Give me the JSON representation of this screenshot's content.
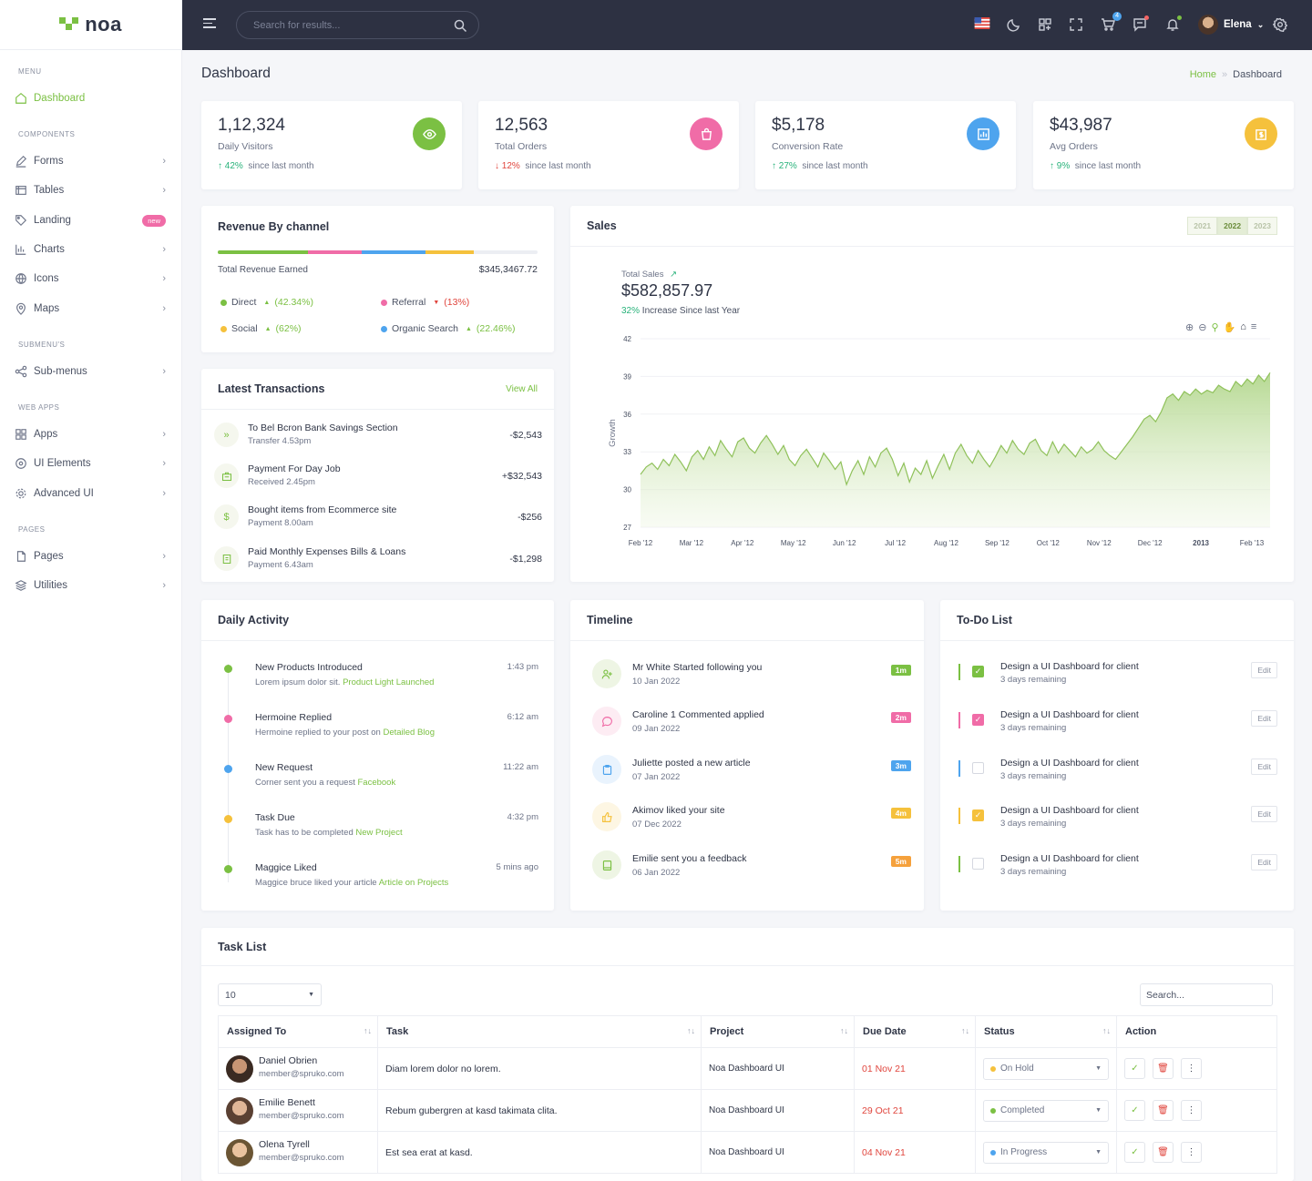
{
  "brand": {
    "name": "noa"
  },
  "sidebar": {
    "cats": [
      "MENU",
      "COMPONENTS",
      "SUBMENU'S",
      "WEB APPS",
      "PAGES"
    ],
    "items": [
      {
        "label": "Dashboard",
        "icon": "home-icon"
      },
      {
        "label": "Forms",
        "icon": "edit-icon"
      },
      {
        "label": "Tables",
        "icon": "table-icon"
      },
      {
        "label": "Landing",
        "icon": "tag-icon",
        "badge": "new"
      },
      {
        "label": "Charts",
        "icon": "chart-icon"
      },
      {
        "label": "Icons",
        "icon": "globe-icon"
      },
      {
        "label": "Maps",
        "icon": "map-pin-icon"
      },
      {
        "label": "Sub-menus",
        "icon": "share-icon"
      },
      {
        "label": "Apps",
        "icon": "grid-icon"
      },
      {
        "label": "UI Elements",
        "icon": "disc-icon"
      },
      {
        "label": "Advanced UI",
        "icon": "gear-icon"
      },
      {
        "label": "Pages",
        "icon": "file-icon"
      },
      {
        "label": "Utilities",
        "icon": "layers-icon"
      }
    ]
  },
  "topbar": {
    "search_placeholder": "Search for results...",
    "cart_count": "4",
    "user_name": "Elena"
  },
  "page": {
    "title": "Dashboard",
    "crumb_home": "Home",
    "crumb_current": "Dashboard"
  },
  "stats": [
    {
      "value": "1,12,324",
      "label": "Daily Visitors",
      "change": "42%",
      "dir": "up",
      "suffix": "since last month",
      "color": "#7bc043",
      "icon": "eye-icon"
    },
    {
      "value": "12,563",
      "label": "Total Orders",
      "change": "12%",
      "dir": "down",
      "suffix": "since last month",
      "color": "#f06ca7",
      "icon": "bag-icon"
    },
    {
      "value": "$5,178",
      "label": "Conversion Rate",
      "change": "27%",
      "dir": "up",
      "suffix": "since last month",
      "color": "#4ea4ee",
      "icon": "chart-icon"
    },
    {
      "value": "$43,987",
      "label": "Avg Orders",
      "change": "9%",
      "dir": "up",
      "suffix": "since last month",
      "color": "#f5c13c",
      "icon": "dollar-icon"
    }
  ],
  "revenue": {
    "title": "Revenue By channel",
    "total_label": "Total Revenue Earned",
    "total_value": "$345,3467.72",
    "channels": [
      {
        "name": "Direct",
        "pct": "(42.34%)",
        "dir": "up",
        "color": "#7bc043"
      },
      {
        "name": "Referral",
        "pct": "(13%)",
        "dir": "down",
        "color": "#f06ca7"
      },
      {
        "name": "Social",
        "pct": "(62%)",
        "dir": "up",
        "color": "#f5c13c"
      },
      {
        "name": "Organic Search",
        "pct": "(22.46%)",
        "dir": "up",
        "color": "#4ea4ee"
      }
    ]
  },
  "transactions": {
    "title": "Latest Transactions",
    "view_all": "View All",
    "rows": [
      {
        "title_pre": "To Bel Bcron Bank ",
        "title_bold": "Savings Section",
        "sub": "Transfer 4.53pm",
        "amount": "-$2,543",
        "icon": "arrows-icon"
      },
      {
        "title_pre": "Payment For ",
        "title_bold": "Day Job",
        "sub": "Received 2.45pm",
        "amount": "+$32,543",
        "icon": "briefcase-icon"
      },
      {
        "title_pre": "Bought items from ",
        "title_bold": "Ecommerce site",
        "sub": "Payment 8.00am",
        "amount": "-$256",
        "icon": "dollar-icon"
      },
      {
        "title_pre": "Paid Monthly Expenses ",
        "title_bold": "Bills & Loans",
        "sub": "Payment 6.43am",
        "amount": "-$1,298",
        "icon": "receipt-icon"
      }
    ]
  },
  "sales": {
    "title": "Sales",
    "years": [
      "2021",
      "2022",
      "2023"
    ],
    "active_year": "2022",
    "total_label": "Total Sales",
    "total_value": "$582,857.97",
    "increase_pct": "32%",
    "increase_text": "Increase Since last Year"
  },
  "chart_data": {
    "type": "area",
    "ylabel": "Growth",
    "ylim": [
      27,
      42
    ],
    "yticks": [
      "42",
      "39",
      "36",
      "33",
      "30",
      "27"
    ],
    "xticks": [
      "Feb '12",
      "Mar '12",
      "Apr '12",
      "May '12",
      "Jun '12",
      "Jul '12",
      "Aug '12",
      "Sep '12",
      "Oct '12",
      "Nov '12",
      "Dec '12",
      "2013",
      "Feb '13"
    ],
    "series": [
      {
        "values": [
          31.2,
          31.8,
          32.1,
          31.6,
          32.4,
          31.9,
          32.8,
          32.2,
          31.5,
          32.6,
          33.1,
          32.4,
          33.4,
          32.7,
          33.9,
          33.2,
          32.6,
          33.8,
          34.1,
          33.3,
          32.9,
          33.7,
          34.3,
          33.6,
          32.8,
          33.5,
          32.4,
          31.9,
          32.7,
          33.2,
          32.5,
          31.8,
          32.9,
          32.3,
          31.6,
          32.2,
          30.4,
          31.5,
          32.3,
          31.2,
          32.6,
          31.8,
          32.9,
          33.3,
          32.4,
          31.1,
          32.1,
          30.6,
          31.7,
          31.2,
          32.3,
          30.9,
          31.9,
          32.8,
          31.6,
          32.9,
          33.6,
          32.7,
          32.1,
          33.1,
          32.4,
          31.8,
          32.6,
          33.5,
          32.9,
          33.9,
          33.2,
          32.8,
          33.7,
          34.0,
          33.1,
          32.7,
          33.8,
          32.9,
          33.6,
          33.1,
          32.6,
          33.4,
          32.9,
          33.2,
          33.8,
          33.1,
          32.7,
          32.4,
          33.0,
          33.6,
          34.2,
          34.9,
          35.6,
          35.9,
          35.4,
          36.2,
          37.3,
          37.6,
          37.1,
          37.8,
          37.5,
          38.0,
          37.6,
          37.9,
          37.7,
          38.3,
          38.0,
          37.8,
          38.6,
          38.2,
          38.8,
          38.4,
          39.1,
          38.6,
          39.3
        ]
      }
    ]
  },
  "activity": {
    "title": "Daily Activity",
    "rows": [
      {
        "title": "New Products Introduced",
        "sub": "Lorem ipsum dolor sit. ",
        "link": "Product Light Launched",
        "time": "1:43 pm",
        "color": "#7bc043"
      },
      {
        "title": "Hermoine Replied",
        "sub": "Hermoine replied to your post on ",
        "link": "Detailed Blog",
        "time": "6:12 am",
        "color": "#f06ca7"
      },
      {
        "title": "New Request",
        "sub": "Corner sent you a request ",
        "link": "Facebook",
        "time": "11:22 am",
        "color": "#4ea4ee"
      },
      {
        "title": "Task Due",
        "sub": "Task has to be completed ",
        "link": "New Project",
        "time": "4:32 pm",
        "color": "#f5c13c"
      },
      {
        "title": "Maggice Liked",
        "sub": "Maggice bruce liked your article ",
        "link": "Article on Projects",
        "time": "5 mins ago",
        "color": "#7bc043"
      }
    ]
  },
  "timeline": {
    "title": "Timeline",
    "rows": [
      {
        "title": "Mr White Started following you",
        "date": "10 Jan 2022",
        "badge": "1m",
        "color": "#7bc043",
        "bg": "#eef5e4",
        "icon": "user-plus-icon"
      },
      {
        "title": "Caroline 1 Commented applied",
        "date": "09 Jan 2022",
        "badge": "2m",
        "color": "#f06ca7",
        "bg": "#fdecf3",
        "icon": "comment-icon"
      },
      {
        "title": "Juliette posted a new article",
        "date": "07 Jan 2022",
        "badge": "3m",
        "color": "#4ea4ee",
        "bg": "#e9f3fd",
        "icon": "clipboard-icon"
      },
      {
        "title": "Akimov liked your site",
        "date": "07 Dec 2022",
        "badge": "4m",
        "color": "#f5c13c",
        "bg": "#fdf6e3",
        "icon": "thumbs-up-icon"
      },
      {
        "title": "Emilie sent you a feedback",
        "date": "06 Jan 2022",
        "badge": "5m",
        "color": "#f5a13c",
        "bg": "#eef5e4",
        "icon": "book-icon"
      }
    ]
  },
  "todo": {
    "title": "To-Do List",
    "edit_label": "Edit",
    "rows": [
      {
        "title": "Design a UI Dashboard for client",
        "sub": "3 days remaining",
        "color": "#7bc043",
        "checked": true
      },
      {
        "title": "Design a UI Dashboard for client",
        "sub": "3 days remaining",
        "color": "#f06ca7",
        "checked": true
      },
      {
        "title": "Design a UI Dashboard for client",
        "sub": "3 days remaining",
        "color": "#4ea4ee",
        "checked": false
      },
      {
        "title": "Design a UI Dashboard for client",
        "sub": "3 days remaining",
        "color": "#f5c13c",
        "checked": true
      },
      {
        "title": "Design a UI Dashboard for client",
        "sub": "3 days remaining",
        "color": "#7bc043",
        "checked": false
      }
    ]
  },
  "tasks": {
    "title": "Task List",
    "page_size": "10",
    "search_placeholder": "Search...",
    "columns": [
      "Assigned To",
      "Task",
      "Project",
      "Due Date",
      "Status",
      "Action"
    ],
    "rows": [
      {
        "name": "Daniel Obrien",
        "email": "member@spruko.com",
        "task": "Diam lorem dolor no lorem.",
        "project": "Noa Dashboard UI",
        "due": "01 Nov 21",
        "status": "On Hold",
        "status_color": "#f5c13c"
      },
      {
        "name": "Emilie Benett",
        "email": "member@spruko.com",
        "task": "Rebum gubergren at kasd takimata clita.",
        "project": "Noa Dashboard UI",
        "due": "29 Oct 21",
        "status": "Completed",
        "status_color": "#7bc043"
      },
      {
        "name": "Olena Tyrell",
        "email": "member@spruko.com",
        "task": "Est sea erat at kasd.",
        "project": "Noa Dashboard UI",
        "due": "04 Nov 21",
        "status": "In Progress",
        "status_color": "#4ea4ee"
      }
    ]
  }
}
